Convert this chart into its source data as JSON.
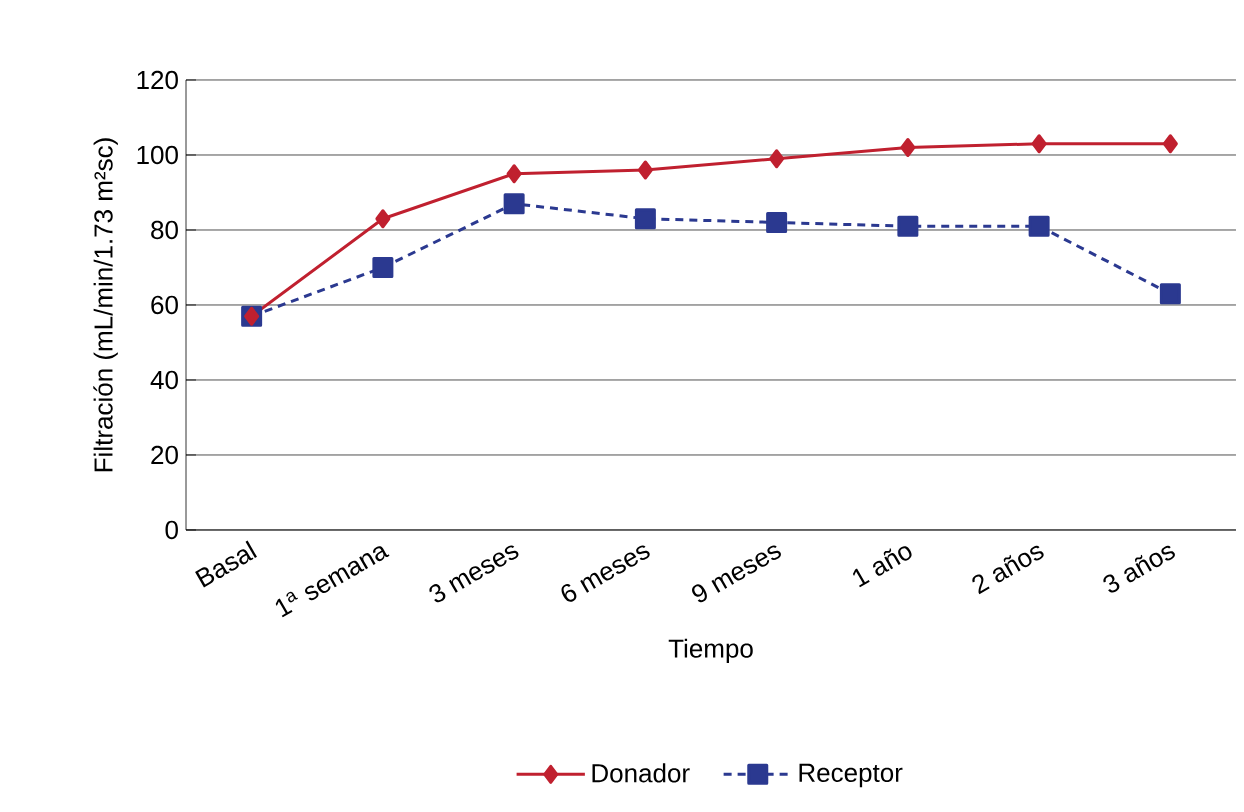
{
  "chart_data": {
    "type": "line",
    "xlabel": "Tiempo",
    "ylabel": "Filtración (mL/min/1.73 m²sc)",
    "categories": [
      "Basal",
      "1$^{a}$ semana",
      "3 meses",
      "6 meses",
      "9 meses",
      "1 año",
      "2 años",
      "3 años"
    ],
    "series": [
      {
        "name": "Donador",
        "color": "#c0202f",
        "marker": "diamond",
        "line_style": "solid",
        "values": [
          57,
          83,
          95,
          96,
          99,
          102,
          103,
          103
        ]
      },
      {
        "name": "Receptor",
        "color": "#2b3990",
        "marker": "square",
        "line_style": "dashed",
        "values": [
          57,
          70,
          87,
          83,
          82,
          81,
          81,
          63
        ]
      }
    ],
    "ylim": [
      0,
      120
    ],
    "yticks": [
      0,
      20,
      40,
      60,
      80,
      100,
      120
    ],
    "grid": "y",
    "legend": "bottom"
  }
}
